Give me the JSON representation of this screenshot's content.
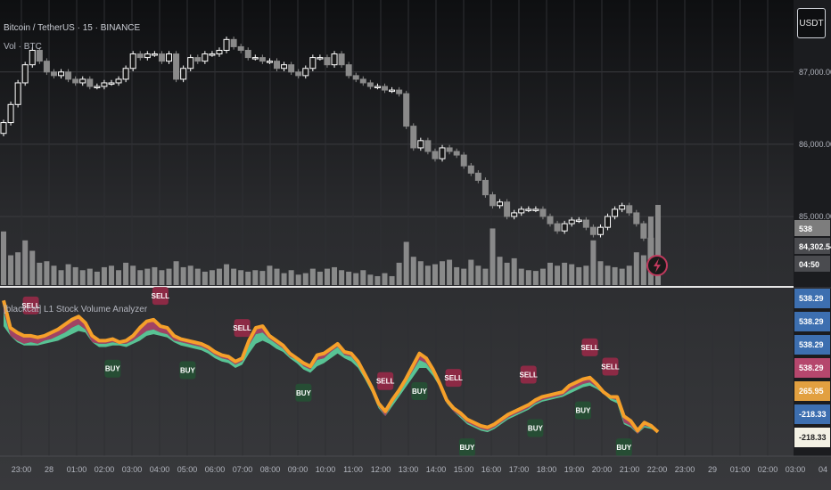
{
  "header": {
    "symbol_title": "Bitcoin / TetherUS · 15 · BINANCE",
    "vol_label": "Vol · BTC",
    "currency_button": "USDT"
  },
  "indicator": {
    "title": "[blackcat] L1 Stock Volume Analyzer"
  },
  "price_axis": {
    "ticks": [
      "87,000.00",
      "86,000.00",
      "85,000.00"
    ],
    "tags": {
      "volume": "538",
      "last_price": "84,302.54",
      "countdown": "04:50"
    }
  },
  "indicator_axis": {
    "tags": [
      "538.29",
      "538.29",
      "538.29",
      "538.29",
      "265.95",
      "-218.33",
      "-218.33"
    ],
    "tag_colors": [
      "#3d6fb0",
      "#3d6fb0",
      "#3d6fb0",
      "#b5476d",
      "#e2a040",
      "#3d6fb0",
      "#f3f1e4"
    ]
  },
  "time_axis": {
    "labels": [
      "23:00",
      "28",
      "01:00",
      "02:00",
      "03:00",
      "04:00",
      "05:00",
      "06:00",
      "07:00",
      "08:00",
      "09:00",
      "10:00",
      "11:00",
      "12:00",
      "13:00",
      "14:00",
      "15:00",
      "16:00",
      "17:00",
      "18:00",
      "19:00",
      "20:00",
      "21:00",
      "22:00",
      "23:00",
      "29",
      "01:00",
      "02:00",
      "03:00",
      "04"
    ]
  },
  "colors": {
    "candle_up": "#ffffff",
    "candle_down": "#8a8a8a",
    "volume_bar": "#9a9a9a",
    "band_orange": "#f5a02a",
    "band_green": "#5dd39e",
    "band_pink": "#b5476d",
    "sell_marker": "#8c2a45",
    "buy_marker": "#264d34"
  },
  "chart_data": [
    {
      "type": "candlestick",
      "title": "Bitcoin / TetherUS · 15 · BINANCE",
      "ylabel": "USDT",
      "ylim": [
        84050,
        87750
      ],
      "close": [
        86300,
        86550,
        86850,
        87100,
        87300,
        87150,
        87000,
        86950,
        87000,
        86900,
        86850,
        86900,
        86800,
        86800,
        86850,
        86850,
        86900,
        87050,
        87250,
        87200,
        87250,
        87250,
        87150,
        87250,
        86900,
        87050,
        87200,
        87150,
        87250,
        87250,
        87300,
        87450,
        87350,
        87300,
        87200,
        87200,
        87150,
        87150,
        87050,
        87100,
        87000,
        86950,
        87050,
        87200,
        87200,
        87100,
        87250,
        87100,
        86950,
        86900,
        86850,
        86800,
        86800,
        86750,
        86750,
        86700,
        86250,
        85950,
        86050,
        85900,
        85800,
        85950,
        85900,
        85850,
        85700,
        85600,
        85500,
        85300,
        85150,
        85200,
        85000,
        85050,
        85100,
        85100,
        85100,
        85000,
        84900,
        84800,
        84900,
        84950,
        84950,
        84850,
        84750,
        84850,
        85000,
        85100,
        85150,
        85050,
        84900,
        84700,
        84300,
        84302.54
      ],
      "volume": [
        360,
        200,
        220,
        300,
        230,
        150,
        160,
        130,
        100,
        140,
        120,
        100,
        110,
        90,
        120,
        130,
        100,
        150,
        130,
        100,
        110,
        120,
        100,
        110,
        160,
        120,
        130,
        110,
        90,
        100,
        110,
        140,
        110,
        100,
        90,
        100,
        95,
        130,
        110,
        80,
        100,
        70,
        80,
        110,
        90,
        110,
        120,
        100,
        90,
        80,
        100,
        70,
        60,
        80,
        60,
        150,
        290,
        190,
        160,
        130,
        140,
        160,
        170,
        120,
        110,
        170,
        130,
        110,
        380,
        190,
        150,
        180,
        110,
        100,
        95,
        110,
        150,
        130,
        150,
        140,
        120,
        130,
        300,
        160,
        130,
        120,
        110,
        130,
        220,
        200,
        460,
        538
      ]
    },
    {
      "type": "area",
      "title": "[blackcat] L1 Stock Volume Analyzer",
      "ylim": [
        -330,
        640
      ],
      "series": [
        {
          "values": [
            530,
            380,
            350,
            330,
            340,
            330,
            350,
            360,
            380,
            400,
            430,
            450,
            420,
            340,
            330,
            330,
            340,
            330,
            330,
            350,
            380,
            410,
            420,
            400,
            390,
            350,
            340,
            330,
            320,
            310,
            290,
            260,
            240,
            230,
            200,
            220,
            320,
            390,
            400,
            360,
            330,
            300,
            250,
            230,
            190,
            170,
            230,
            240,
            280,
            310,
            260,
            250,
            200,
            120,
            40,
            -60,
            -120,
            -40,
            20,
            90,
            160,
            230,
            210,
            150,
            60,
            -40,
            -90,
            -120,
            -160,
            -180,
            -200,
            -210,
            -190,
            -160,
            -130,
            -110,
            -90,
            -70,
            -40,
            -20,
            -10,
            0,
            10,
            40,
            60,
            80,
            90,
            60,
            20,
            -10,
            -20,
            -160,
            -180,
            -230,
            -180,
            -190,
            -218.33
          ]
        },
        {
          "values": [
            440,
            380,
            340,
            320,
            320,
            320,
            330,
            340,
            350,
            370,
            390,
            410,
            400,
            340,
            310,
            310,
            320,
            320,
            310,
            330,
            350,
            380,
            390,
            380,
            370,
            340,
            320,
            310,
            300,
            290,
            270,
            240,
            220,
            210,
            180,
            200,
            270,
            330,
            350,
            330,
            300,
            280,
            240,
            210,
            170,
            150,
            190,
            210,
            240,
            270,
            240,
            220,
            180,
            110,
            30,
            -70,
            -120,
            -60,
            0,
            60,
            120,
            180,
            180,
            130,
            60,
            -30,
            -90,
            -130,
            -170,
            -190,
            -210,
            -220,
            -200,
            -170,
            -140,
            -120,
            -100,
            -80,
            -50,
            -30,
            -20,
            -10,
            0,
            20,
            40,
            60,
            70,
            50,
            20,
            -20,
            -40,
            -170,
            -190,
            -230,
            -190,
            -200,
            -218.33
          ]
        },
        {
          "values": [
            600,
            430,
            400,
            380,
            380,
            370,
            380,
            400,
            420,
            450,
            480,
            500,
            460,
            380,
            350,
            350,
            360,
            340,
            350,
            380,
            430,
            470,
            480,
            440,
            430,
            380,
            360,
            350,
            340,
            330,
            310,
            280,
            260,
            250,
            220,
            240,
            350,
            430,
            440,
            380,
            350,
            320,
            270,
            240,
            210,
            190,
            260,
            270,
            300,
            330,
            280,
            270,
            220,
            140,
            60,
            -40,
            -90,
            -20,
            40,
            110,
            190,
            270,
            240,
            170,
            80,
            -20,
            -70,
            -100,
            -140,
            -160,
            -180,
            -190,
            -170,
            -140,
            -110,
            -90,
            -70,
            -50,
            -20,
            0,
            10,
            20,
            30,
            70,
            90,
            110,
            120,
            80,
            30,
            0,
            0,
            -120,
            -150,
            -210,
            -160,
            -180,
            -218.33
          ]
        }
      ],
      "markers": {
        "sell": [
          4,
          23,
          35,
          56,
          66,
          77,
          86,
          89
        ],
        "buy": [
          16,
          27,
          44,
          61,
          68,
          78,
          85,
          91
        ]
      },
      "labels": {
        "sell": "SELL",
        "buy": "BUY"
      }
    }
  ]
}
